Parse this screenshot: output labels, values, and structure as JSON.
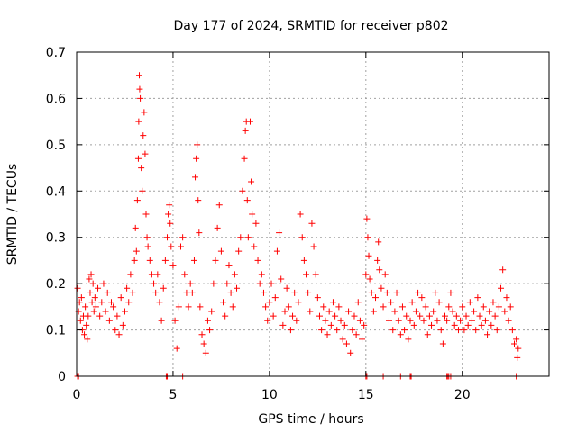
{
  "chart_data": {
    "type": "scatter",
    "title": "Day 177 of 2024, SRMTID for receiver p802",
    "xlabel": "GPS time / hours",
    "ylabel": "SRMTID / TECUs",
    "xlim": [
      0,
      24.5
    ],
    "ylim": [
      0,
      0.7
    ],
    "x_ticks": [
      0,
      5,
      10,
      15,
      20
    ],
    "y_ticks": [
      0,
      0.1,
      0.2,
      0.3,
      0.4,
      0.5,
      0.6,
      0.7
    ],
    "grid": true,
    "marker": "+",
    "series": [
      {
        "name": "SRMTID",
        "color": "#ff0000",
        "note": "approximate values read off the plot",
        "points": [
          [
            0.05,
            0.19
          ],
          [
            0.1,
            0.14
          ],
          [
            0.15,
            0.16
          ],
          [
            0.2,
            0.12
          ],
          [
            0.25,
            0.17
          ],
          [
            0.3,
            0.1
          ],
          [
            0.35,
            0.13
          ],
          [
            0.4,
            0.09
          ],
          [
            0.45,
            0.15
          ],
          [
            0.5,
            0.11
          ],
          [
            0.55,
            0.08
          ],
          [
            0.6,
            0.13
          ],
          [
            0.65,
            0.21
          ],
          [
            0.7,
            0.18
          ],
          [
            0.75,
            0.22
          ],
          [
            0.8,
            0.16
          ],
          [
            0.85,
            0.2
          ],
          [
            0.9,
            0.14
          ],
          [
            0.95,
            0.17
          ],
          [
            1.0,
            0.15
          ],
          [
            1.1,
            0.19
          ],
          [
            1.2,
            0.13
          ],
          [
            1.3,
            0.16
          ],
          [
            1.4,
            0.2
          ],
          [
            1.5,
            0.14
          ],
          [
            1.6,
            0.18
          ],
          [
            1.7,
            0.12
          ],
          [
            1.8,
            0.16
          ],
          [
            1.9,
            0.15
          ],
          [
            2.0,
            0.1
          ],
          [
            2.1,
            0.13
          ],
          [
            2.2,
            0.09
          ],
          [
            2.3,
            0.17
          ],
          [
            2.4,
            0.11
          ],
          [
            2.5,
            0.14
          ],
          [
            2.6,
            0.19
          ],
          [
            2.7,
            0.16
          ],
          [
            2.8,
            0.22
          ],
          [
            2.9,
            0.18
          ],
          [
            3.0,
            0.25
          ],
          [
            3.05,
            0.32
          ],
          [
            3.1,
            0.27
          ],
          [
            3.15,
            0.38
          ],
          [
            3.2,
            0.47
          ],
          [
            3.22,
            0.55
          ],
          [
            3.25,
            0.65
          ],
          [
            3.27,
            0.62
          ],
          [
            3.3,
            0.6
          ],
          [
            3.35,
            0.45
          ],
          [
            3.4,
            0.4
          ],
          [
            3.45,
            0.52
          ],
          [
            3.5,
            0.57
          ],
          [
            3.55,
            0.48
          ],
          [
            3.6,
            0.35
          ],
          [
            3.65,
            0.3
          ],
          [
            3.7,
            0.28
          ],
          [
            3.8,
            0.25
          ],
          [
            3.9,
            0.22
          ],
          [
            4.0,
            0.2
          ],
          [
            4.1,
            0.18
          ],
          [
            4.2,
            0.22
          ],
          [
            4.3,
            0.16
          ],
          [
            4.4,
            0.12
          ],
          [
            4.5,
            0.19
          ],
          [
            4.6,
            0.25
          ],
          [
            4.7,
            0.3
          ],
          [
            4.75,
            0.35
          ],
          [
            4.8,
            0.37
          ],
          [
            4.85,
            0.33
          ],
          [
            4.9,
            0.28
          ],
          [
            5.0,
            0.24
          ],
          [
            5.1,
            0.12
          ],
          [
            5.2,
            0.06
          ],
          [
            5.3,
            0.15
          ],
          [
            5.4,
            0.28
          ],
          [
            5.5,
            0.3
          ],
          [
            5.6,
            0.22
          ],
          [
            5.7,
            0.18
          ],
          [
            5.8,
            0.15
          ],
          [
            5.9,
            0.2
          ],
          [
            6.0,
            0.18
          ],
          [
            6.1,
            0.25
          ],
          [
            6.15,
            0.43
          ],
          [
            6.2,
            0.47
          ],
          [
            6.25,
            0.5
          ],
          [
            6.3,
            0.38
          ],
          [
            6.35,
            0.31
          ],
          [
            6.4,
            0.15
          ],
          [
            6.5,
            0.09
          ],
          [
            6.6,
            0.07
          ],
          [
            6.7,
            0.05
          ],
          [
            6.8,
            0.12
          ],
          [
            6.9,
            0.1
          ],
          [
            7.0,
            0.14
          ],
          [
            7.1,
            0.2
          ],
          [
            7.2,
            0.25
          ],
          [
            7.3,
            0.32
          ],
          [
            7.4,
            0.37
          ],
          [
            7.5,
            0.27
          ],
          [
            7.6,
            0.16
          ],
          [
            7.7,
            0.13
          ],
          [
            7.8,
            0.2
          ],
          [
            7.9,
            0.24
          ],
          [
            8.0,
            0.18
          ],
          [
            8.1,
            0.15
          ],
          [
            8.2,
            0.22
          ],
          [
            8.3,
            0.19
          ],
          [
            8.4,
            0.27
          ],
          [
            8.5,
            0.3
          ],
          [
            8.6,
            0.4
          ],
          [
            8.7,
            0.47
          ],
          [
            8.75,
            0.53
          ],
          [
            8.8,
            0.55
          ],
          [
            8.85,
            0.38
          ],
          [
            8.9,
            0.3
          ],
          [
            9.0,
            0.55
          ],
          [
            9.05,
            0.42
          ],
          [
            9.1,
            0.35
          ],
          [
            9.2,
            0.28
          ],
          [
            9.3,
            0.33
          ],
          [
            9.4,
            0.25
          ],
          [
            9.5,
            0.2
          ],
          [
            9.6,
            0.22
          ],
          [
            9.7,
            0.18
          ],
          [
            9.8,
            0.15
          ],
          [
            9.9,
            0.12
          ],
          [
            10.0,
            0.16
          ],
          [
            10.1,
            0.2
          ],
          [
            10.2,
            0.13
          ],
          [
            10.3,
            0.17
          ],
          [
            10.4,
            0.27
          ],
          [
            10.5,
            0.31
          ],
          [
            10.6,
            0.21
          ],
          [
            10.7,
            0.11
          ],
          [
            10.8,
            0.14
          ],
          [
            10.9,
            0.19
          ],
          [
            11.0,
            0.15
          ],
          [
            11.1,
            0.1
          ],
          [
            11.2,
            0.13
          ],
          [
            11.3,
            0.18
          ],
          [
            11.4,
            0.12
          ],
          [
            11.5,
            0.16
          ],
          [
            11.6,
            0.35
          ],
          [
            11.7,
            0.3
          ],
          [
            11.8,
            0.25
          ],
          [
            11.9,
            0.22
          ],
          [
            12.0,
            0.18
          ],
          [
            12.1,
            0.14
          ],
          [
            12.2,
            0.33
          ],
          [
            12.3,
            0.28
          ],
          [
            12.4,
            0.22
          ],
          [
            12.5,
            0.17
          ],
          [
            12.6,
            0.13
          ],
          [
            12.7,
            0.1
          ],
          [
            12.8,
            0.15
          ],
          [
            12.9,
            0.12
          ],
          [
            13.0,
            0.09
          ],
          [
            13.1,
            0.14
          ],
          [
            13.2,
            0.11
          ],
          [
            13.3,
            0.16
          ],
          [
            13.4,
            0.13
          ],
          [
            13.5,
            0.1
          ],
          [
            13.6,
            0.15
          ],
          [
            13.7,
            0.12
          ],
          [
            13.8,
            0.08
          ],
          [
            13.9,
            0.11
          ],
          [
            14.0,
            0.07
          ],
          [
            14.1,
            0.14
          ],
          [
            14.2,
            0.05
          ],
          [
            14.3,
            0.1
          ],
          [
            14.4,
            0.13
          ],
          [
            14.5,
            0.09
          ],
          [
            14.6,
            0.16
          ],
          [
            14.7,
            0.12
          ],
          [
            14.8,
            0.08
          ],
          [
            14.9,
            0.11
          ],
          [
            15.0,
            0.22
          ],
          [
            15.05,
            0.34
          ],
          [
            15.1,
            0.3
          ],
          [
            15.15,
            0.26
          ],
          [
            15.2,
            0.21
          ],
          [
            15.3,
            0.18
          ],
          [
            15.4,
            0.14
          ],
          [
            15.5,
            0.17
          ],
          [
            15.6,
            0.25
          ],
          [
            15.65,
            0.29
          ],
          [
            15.7,
            0.23
          ],
          [
            15.8,
            0.19
          ],
          [
            15.9,
            0.15
          ],
          [
            16.0,
            0.22
          ],
          [
            16.1,
            0.18
          ],
          [
            16.2,
            0.12
          ],
          [
            16.3,
            0.16
          ],
          [
            16.4,
            0.1
          ],
          [
            16.5,
            0.14
          ],
          [
            16.6,
            0.18
          ],
          [
            16.7,
            0.12
          ],
          [
            16.8,
            0.09
          ],
          [
            16.9,
            0.15
          ],
          [
            17.0,
            0.1
          ],
          [
            17.1,
            0.13
          ],
          [
            17.2,
            0.08
          ],
          [
            17.3,
            0.12
          ],
          [
            17.4,
            0.16
          ],
          [
            17.5,
            0.11
          ],
          [
            17.6,
            0.14
          ],
          [
            17.7,
            0.18
          ],
          [
            17.8,
            0.13
          ],
          [
            17.9,
            0.17
          ],
          [
            18.0,
            0.12
          ],
          [
            18.1,
            0.15
          ],
          [
            18.2,
            0.09
          ],
          [
            18.3,
            0.13
          ],
          [
            18.4,
            0.11
          ],
          [
            18.5,
            0.14
          ],
          [
            18.6,
            0.18
          ],
          [
            18.7,
            0.12
          ],
          [
            18.8,
            0.16
          ],
          [
            18.9,
            0.1
          ],
          [
            19.0,
            0.07
          ],
          [
            19.1,
            0.13
          ],
          [
            19.2,
            0.12
          ],
          [
            19.3,
            0.15
          ],
          [
            19.4,
            0.18
          ],
          [
            19.5,
            0.14
          ],
          [
            19.6,
            0.11
          ],
          [
            19.7,
            0.13
          ],
          [
            19.8,
            0.1
          ],
          [
            19.9,
            0.12
          ],
          [
            20.0,
            0.15
          ],
          [
            20.1,
            0.1
          ],
          [
            20.2,
            0.13
          ],
          [
            20.3,
            0.11
          ],
          [
            20.4,
            0.16
          ],
          [
            20.5,
            0.12
          ],
          [
            20.6,
            0.14
          ],
          [
            20.7,
            0.1
          ],
          [
            20.8,
            0.17
          ],
          [
            20.9,
            0.13
          ],
          [
            21.0,
            0.11
          ],
          [
            21.1,
            0.15
          ],
          [
            21.2,
            0.12
          ],
          [
            21.3,
            0.09
          ],
          [
            21.4,
            0.14
          ],
          [
            21.5,
            0.11
          ],
          [
            21.6,
            0.16
          ],
          [
            21.7,
            0.13
          ],
          [
            21.8,
            0.1
          ],
          [
            21.9,
            0.15
          ],
          [
            22.0,
            0.19
          ],
          [
            22.1,
            0.23
          ],
          [
            22.2,
            0.14
          ],
          [
            22.3,
            0.17
          ],
          [
            22.4,
            0.12
          ],
          [
            22.5,
            0.15
          ],
          [
            22.6,
            0.1
          ],
          [
            22.7,
            0.07
          ],
          [
            22.8,
            0.08
          ],
          [
            22.85,
            0.04
          ],
          [
            22.9,
            0.06
          ]
        ],
        "zero_points": [
          0.05,
          0.1,
          4.65,
          4.7,
          5.5,
          15.0,
          15.05,
          15.9,
          16.8,
          17.3,
          17.35,
          19.2,
          19.25,
          19.3,
          19.4,
          22.8
        ]
      }
    ]
  }
}
